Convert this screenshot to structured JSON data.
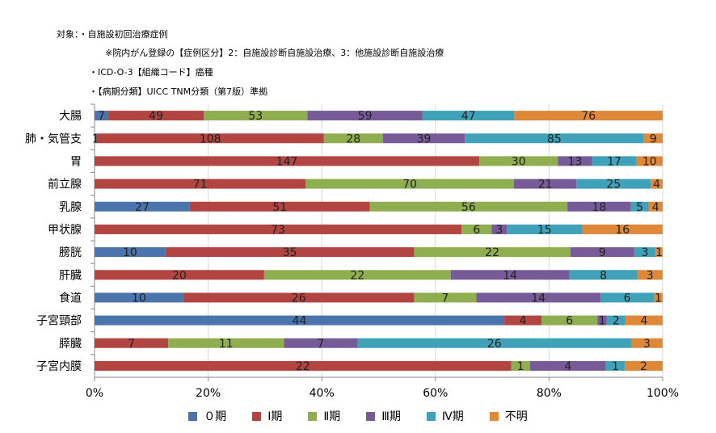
{
  "notes": [
    "対象：・自施設初回治療症例",
    "※院内がん登録の【症例区分】2：自施設診断自施設治療、3：他施設診断自施設治療",
    "・ICD-O-3【組織コード】癌種",
    "・【病期分類】UICC TNM分類（第7版）準拠"
  ],
  "chart_data": {
    "type": "bar",
    "orientation": "horizontal",
    "stacked": "percent",
    "categories": [
      "大腸",
      "肺・気管支",
      "胃",
      "前立腺",
      "乳腺",
      "甲状腺",
      "膀胱",
      "肝臓",
      "食道",
      "子宮頸部",
      "膵臓",
      "子宮内膜"
    ],
    "series": [
      {
        "name": "０期",
        "color": "#4a74ab",
        "values": [
          7,
          1,
          0,
          0,
          27,
          0,
          10,
          0,
          10,
          44,
          0,
          0
        ]
      },
      {
        "name": "Ⅰ期",
        "color": "#b24441",
        "values": [
          49,
          108,
          147,
          71,
          51,
          73,
          35,
          20,
          26,
          4,
          7,
          22
        ]
      },
      {
        "name": "Ⅱ期",
        "color": "#8eae4f",
        "values": [
          53,
          28,
          30,
          70,
          56,
          6,
          22,
          22,
          7,
          6,
          11,
          1
        ]
      },
      {
        "name": "Ⅲ期",
        "color": "#775b98",
        "values": [
          59,
          39,
          13,
          21,
          18,
          3,
          9,
          14,
          14,
          1,
          7,
          4
        ]
      },
      {
        "name": "Ⅳ期",
        "color": "#3fa2b8",
        "values": [
          47,
          85,
          17,
          25,
          5,
          15,
          3,
          8,
          6,
          2,
          26,
          1
        ]
      },
      {
        "name": "不明",
        "color": "#e0883a",
        "values": [
          76,
          9,
          10,
          4,
          4,
          16,
          1,
          3,
          1,
          4,
          3,
          2
        ]
      }
    ],
    "xlim": [
      0,
      100
    ],
    "x_ticks": [
      "0%",
      "20%",
      "40%",
      "60%",
      "80%",
      "100%"
    ],
    "grid": true,
    "legend_position": "bottom",
    "data_labels": true
  }
}
